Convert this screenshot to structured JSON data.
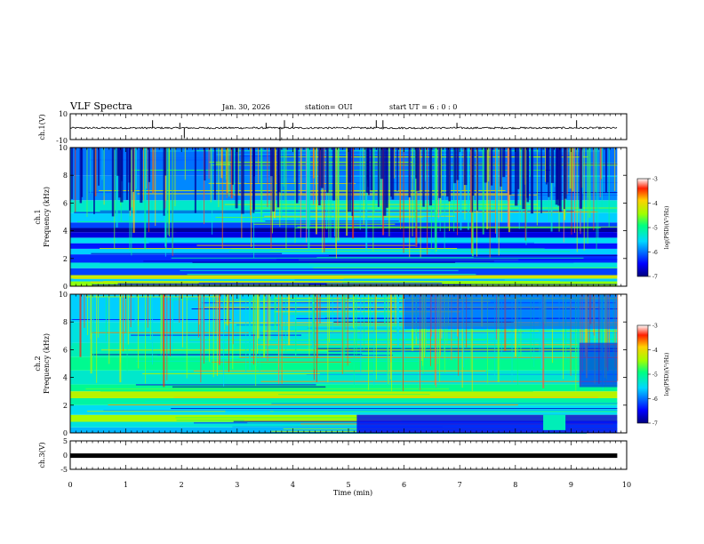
{
  "header": {
    "title": "VLF Spectra",
    "date": "Jan. 30, 2026",
    "station": "station= OUI",
    "start_ut": "start  UT =  6 : 0  : 0"
  },
  "chart_data": [
    {
      "type": "line",
      "name": "waveform-ch1",
      "ylabel": "ch.1(V)",
      "ylim": [
        -10,
        10
      ],
      "yticks": [
        "10",
        "-10"
      ],
      "baseline": -1.0,
      "spikes": [
        [
          1.48,
          3
        ],
        [
          1.97,
          2
        ],
        [
          2.05,
          -4
        ],
        [
          3.52,
          2
        ],
        [
          3.77,
          -5
        ],
        [
          3.85,
          3
        ],
        [
          4.0,
          2
        ],
        [
          5.5,
          3
        ],
        [
          5.62,
          3
        ],
        [
          6.95,
          2
        ],
        [
          9.1,
          3
        ]
      ]
    },
    {
      "type": "heatmap",
      "name": "spectrogram-ch1",
      "ylabel": "ch.1",
      "ylabel2": "Frequency (kHz)",
      "ylim": [
        0,
        10
      ],
      "yticks": [
        "0",
        "2",
        "4",
        "6",
        "8",
        "10"
      ],
      "colorbar": {
        "label": "log(PSD)(V²/Hz)",
        "ticks": [
          "-3",
          "-4",
          "-5",
          "-6",
          "-7"
        ],
        "range": [
          -7,
          -3
        ]
      },
      "bands": [
        {
          "f": [
            0.0,
            0.35
          ],
          "v": -4.5
        },
        {
          "f": [
            0.35,
            0.55
          ],
          "v": -5.6
        },
        {
          "f": [
            0.55,
            0.8
          ],
          "v": -4.2
        },
        {
          "f": [
            0.8,
            1.3
          ],
          "v": -6.2
        },
        {
          "f": [
            1.3,
            1.7
          ],
          "v": -5.4
        },
        {
          "f": [
            1.7,
            2.3
          ],
          "v": -6.3
        },
        {
          "f": [
            2.3,
            2.7
          ],
          "v": -5.6
        },
        {
          "f": [
            2.7,
            3.1
          ],
          "v": -6.4
        },
        {
          "f": [
            3.1,
            3.5
          ],
          "v": -5.5
        },
        {
          "f": [
            3.5,
            3.9
          ],
          "v": -6.6
        },
        {
          "f": [
            3.9,
            4.2
          ],
          "v": -6.9
        },
        {
          "f": [
            4.2,
            4.6
          ],
          "v": -6.2
        },
        {
          "f": [
            4.6,
            5.3
          ],
          "v": -5.6
        },
        {
          "f": [
            5.3,
            6.2
          ],
          "v": -5.3
        },
        {
          "f": [
            6.2,
            8.0
          ],
          "v": -5.9
        },
        {
          "f": [
            8.0,
            10.0
          ],
          "v": -6.0
        }
      ]
    },
    {
      "type": "heatmap",
      "name": "spectrogram-ch2",
      "ylabel": "ch.2",
      "ylabel2": "Frequency (kHz)",
      "ylim": [
        0,
        10
      ],
      "yticks": [
        "0",
        "2",
        "4",
        "6",
        "8",
        "10"
      ],
      "colorbar": {
        "label": "log(PSD)(V²/Hz)",
        "ticks": [
          "-3",
          "-4",
          "-5",
          "-6",
          "-7"
        ],
        "range": [
          -7,
          -3
        ]
      },
      "bands": [
        {
          "f": [
            0.0,
            0.4
          ],
          "v": -5.7
        },
        {
          "f": [
            0.4,
            0.8
          ],
          "v": -5.4
        },
        {
          "f": [
            0.8,
            1.3
          ],
          "v": -4.4
        },
        {
          "f": [
            1.3,
            2.0
          ],
          "v": -5.5
        },
        {
          "f": [
            2.0,
            2.5
          ],
          "v": -5.1
        },
        {
          "f": [
            2.5,
            3.0
          ],
          "v": -4.3
        },
        {
          "f": [
            3.0,
            3.5
          ],
          "v": -5.0
        },
        {
          "f": [
            3.5,
            4.5
          ],
          "v": -5.3
        },
        {
          "f": [
            4.5,
            5.5
          ],
          "v": -5.0
        },
        {
          "f": [
            5.5,
            6.5
          ],
          "v": -5.2
        },
        {
          "f": [
            6.5,
            8.0
          ],
          "v": -5.4
        },
        {
          "f": [
            8.0,
            10.0
          ],
          "v": -5.6
        }
      ]
    },
    {
      "type": "line",
      "name": "waveform-ch3",
      "ylabel": "ch.3(V)",
      "ylim": [
        -5,
        5
      ],
      "yticks": [
        "5",
        "0",
        "-5"
      ],
      "baseline": -0.2
    }
  ],
  "xaxis": {
    "label": "Time  (min)",
    "range": [
      0,
      10
    ],
    "ticks": [
      "0",
      "1",
      "2",
      "3",
      "4",
      "5",
      "6",
      "7",
      "8",
      "9",
      "10"
    ],
    "data_end": 9.83
  }
}
